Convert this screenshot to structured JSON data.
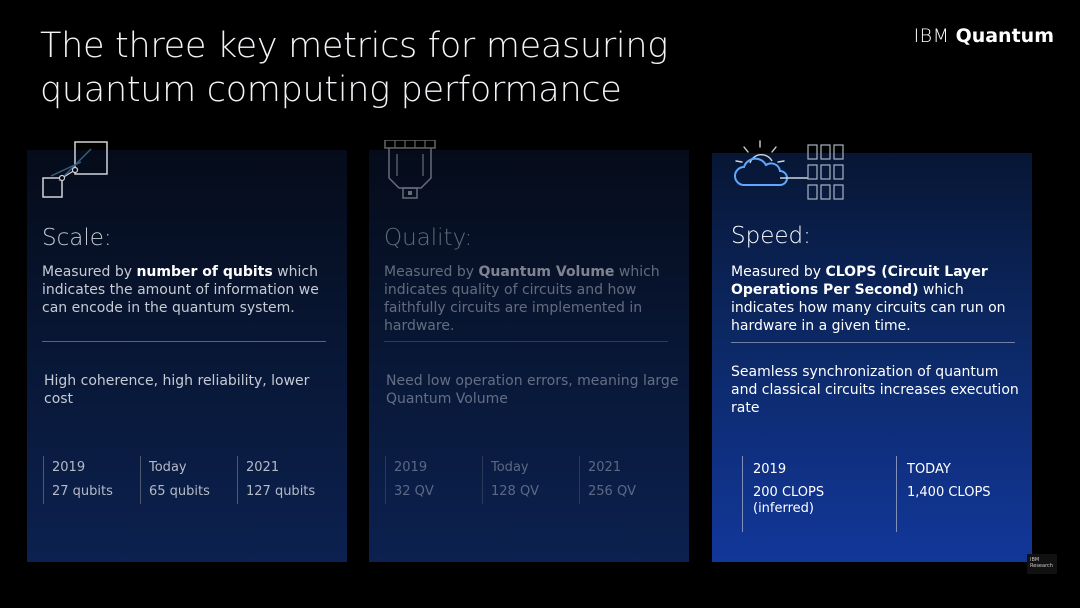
{
  "header": {
    "title_lines": [
      "The three key metrics for measuring",
      "quantum computing performance"
    ],
    "brand": {
      "ibm": "IBM",
      "quantum": "Quantum"
    }
  },
  "cards": [
    {
      "heading": "Scale:",
      "desc_prefix": "Measured by ",
      "desc_bold": "number of qubits",
      "desc_suffix": " which indicates the amount of information we can encode in the quantum system.",
      "note": "High coherence, high reliability, lower cost",
      "icon": "scale-icon",
      "stats": [
        {
          "label": "2019",
          "value": "27 qubits"
        },
        {
          "label": "Today",
          "value": "65 qubits"
        },
        {
          "label": "2021",
          "value": "127 qubits"
        }
      ]
    },
    {
      "heading": "Quality:",
      "desc_prefix": "Measured by ",
      "desc_bold": "Quantum Volume",
      "desc_suffix": " which indicates quality of circuits and how faithfully circuits are implemented in hardware.",
      "note": "Need low operation errors, meaning large Quantum Volume",
      "icon": "quantum-chip-icon",
      "stats": [
        {
          "label": "2019",
          "value": "32 QV"
        },
        {
          "label": "Today",
          "value": "128 QV"
        },
        {
          "label": "2021",
          "value": "256 QV"
        }
      ]
    },
    {
      "heading": "Speed:",
      "desc_prefix": "Measured by ",
      "desc_bold": "CLOPS (Circuit Layer Operations Per Second)",
      "desc_suffix": " which indicates how many circuits can run on hardware in a given time.",
      "note": "Seamless synchronization of quantum and classical circuits increases execution rate",
      "icon": "cloud-hardware-icon",
      "stats": [
        {
          "label": "2019",
          "value": "200 CLOPS",
          "value2": "(inferred)"
        },
        {
          "label": "TODAY",
          "value": "1,400 CLOPS"
        }
      ]
    }
  ],
  "footer": {
    "research_badge": [
      "IBM",
      "Research"
    ]
  },
  "colors": {
    "background": "#000000",
    "card_dim": "#0c2150",
    "card_active": "#12379a",
    "accent": "#4589ff"
  }
}
